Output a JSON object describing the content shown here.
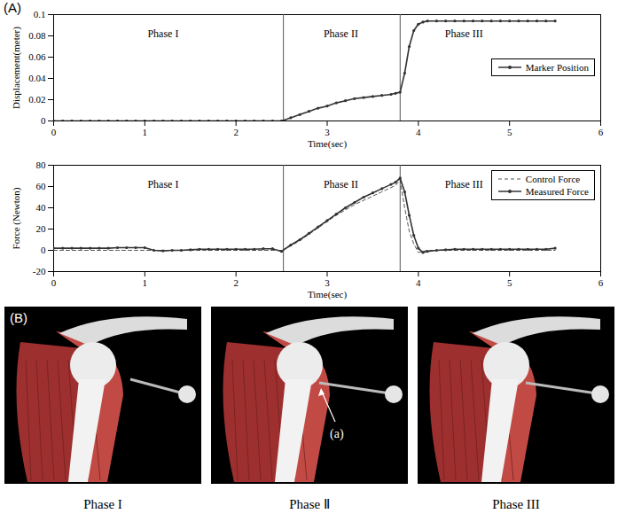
{
  "chart_data": [
    {
      "type": "line",
      "x_label": "Time(sec)",
      "y_label": "Displacement(meter)",
      "x": [
        0,
        0.1,
        0.2,
        0.3,
        0.4,
        0.5,
        0.6,
        0.7,
        0.8,
        0.9,
        1.0,
        1.1,
        1.2,
        1.3,
        1.4,
        1.5,
        1.6,
        1.7,
        1.8,
        1.9,
        2.0,
        2.1,
        2.2,
        2.3,
        2.4,
        2.5,
        2.6,
        2.7,
        2.8,
        2.9,
        3.0,
        3.1,
        3.2,
        3.3,
        3.4,
        3.5,
        3.6,
        3.7,
        3.75,
        3.8,
        3.85,
        3.9,
        3.95,
        4.0,
        4.05,
        4.1,
        4.2,
        4.3,
        4.4,
        4.5,
        4.6,
        4.7,
        4.8,
        4.9,
        5.0,
        5.1,
        5.2,
        5.3,
        5.4,
        5.5
      ],
      "series": [
        {
          "name": "Marker Position",
          "color": "#333333",
          "marker": "circle",
          "line_style": "solid",
          "values": [
            0,
            0,
            0,
            0,
            0,
            0,
            0,
            0,
            0,
            0,
            0,
            0,
            0,
            0,
            0,
            0,
            0,
            0,
            0,
            0,
            0,
            0,
            0,
            0,
            0,
            0,
            0.003,
            0.006,
            0.009,
            0.012,
            0.014,
            0.017,
            0.019,
            0.021,
            0.022,
            0.023,
            0.024,
            0.025,
            0.026,
            0.027,
            0.045,
            0.07,
            0.085,
            0.091,
            0.093,
            0.094,
            0.094,
            0.094,
            0.094,
            0.094,
            0.094,
            0.094,
            0.094,
            0.094,
            0.094,
            0.094,
            0.094,
            0.094,
            0.094,
            0.094
          ]
        }
      ],
      "xlim": [
        0,
        6
      ],
      "xticks": [
        0,
        1,
        2,
        3,
        4,
        5,
        6
      ],
      "ylim": [
        0,
        0.1
      ],
      "yticks": [
        0,
        0.02,
        0.04,
        0.06,
        0.08,
        0.1
      ],
      "phase_boundaries": [
        2.52,
        3.8
      ],
      "annotations": [
        {
          "text": "Phase I",
          "x": 1.2,
          "y": 0.082
        },
        {
          "text": "Phase II",
          "x": 3.15,
          "y": 0.082
        },
        {
          "text": "Phase III",
          "x": 4.5,
          "y": 0.082
        }
      ],
      "legend": "center right",
      "grid": false
    },
    {
      "type": "line",
      "x_label": "Time(sec)",
      "y_label": "Force (Newton)",
      "x": [
        0,
        0.1,
        0.2,
        0.3,
        0.4,
        0.5,
        0.6,
        0.7,
        0.8,
        0.9,
        1.0,
        1.1,
        1.2,
        1.3,
        1.4,
        1.5,
        1.6,
        1.7,
        1.8,
        1.9,
        2.0,
        2.1,
        2.2,
        2.3,
        2.4,
        2.5,
        2.6,
        2.7,
        2.8,
        2.9,
        3.0,
        3.1,
        3.2,
        3.3,
        3.4,
        3.5,
        3.6,
        3.7,
        3.75,
        3.8,
        3.85,
        3.9,
        3.95,
        4.0,
        4.05,
        4.1,
        4.2,
        4.3,
        4.4,
        4.5,
        4.6,
        4.7,
        4.8,
        4.9,
        5.0,
        5.1,
        5.2,
        5.3,
        5.4,
        5.5
      ],
      "series": [
        {
          "name": "Control Force",
          "color": "#555555",
          "line_style": "dashed",
          "values": [
            0,
            0,
            0,
            0,
            0,
            0,
            0,
            0,
            0,
            0,
            0,
            0,
            0,
            0,
            0,
            0,
            0,
            0,
            0,
            0,
            0,
            0,
            0,
            0,
            0,
            0,
            4,
            9,
            15,
            21,
            27,
            33,
            38,
            43,
            47,
            51,
            55,
            59,
            61,
            66,
            40,
            18,
            6,
            -2,
            -1,
            0,
            0,
            0,
            0,
            0,
            0,
            0,
            0,
            0,
            0,
            0,
            0,
            0,
            0,
            0
          ]
        },
        {
          "name": "Measured Force",
          "color": "#333333",
          "marker": "circle",
          "line_style": "solid",
          "values": [
            2,
            2,
            2,
            2,
            2,
            2,
            2,
            2.5,
            2.5,
            2.5,
            2.5,
            0,
            -0.5,
            0,
            0,
            0.5,
            1,
            1,
            1,
            1,
            1,
            1,
            1,
            1.5,
            1.5,
            -1,
            5,
            10,
            16,
            22,
            28,
            34,
            40,
            45,
            50,
            54,
            58,
            62,
            64,
            68,
            55,
            33,
            14,
            2,
            -2,
            -1,
            0,
            0.5,
            1,
            1,
            1,
            1,
            1,
            1,
            1,
            1,
            1,
            1,
            1,
            2
          ]
        }
      ],
      "xlim": [
        0,
        6
      ],
      "xticks": [
        0,
        1,
        2,
        3,
        4,
        5,
        6
      ],
      "ylim": [
        -20,
        80
      ],
      "yticks": [
        -20,
        0,
        20,
        40,
        60,
        80
      ],
      "phase_boundaries": [
        2.52,
        3.8
      ],
      "annotations": [
        {
          "text": "Phase I",
          "x": 1.2,
          "y": 62
        },
        {
          "text": "Phase II",
          "x": 3.15,
          "y": 62
        },
        {
          "text": "Phase III",
          "x": 4.5,
          "y": 62
        }
      ],
      "legend": "upper right",
      "grid": false
    }
  ],
  "figure": {
    "panel_labels": [
      "(A)",
      "(B)"
    ],
    "images": [
      {
        "caption": "Phase I"
      },
      {
        "caption": "Phase Ⅱ",
        "annotation": "(a)"
      },
      {
        "caption": "Phase III"
      }
    ]
  }
}
